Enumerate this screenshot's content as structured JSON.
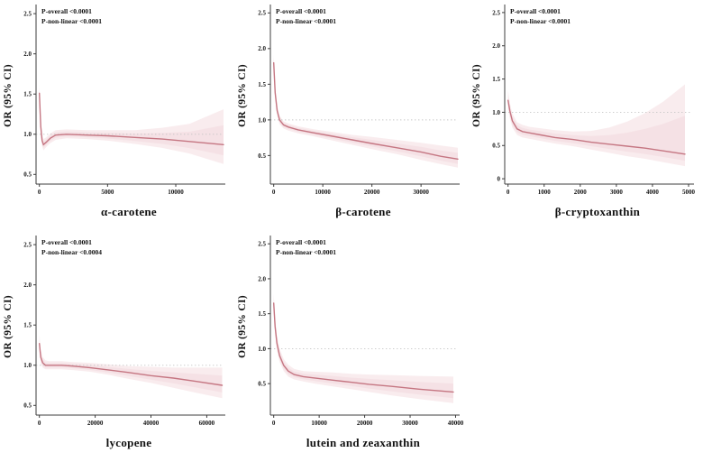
{
  "figure": {
    "background": "#ffffff",
    "curve_color": "#c57682",
    "band_color": "#f3d9de",
    "refline_color": "#c6c6c6",
    "axis_color": "#3c3c3c",
    "text_color": "#111111"
  },
  "chart_data": [
    {
      "type": "line",
      "id": "alpha-carotene",
      "title": "α-carotene",
      "ylabel": "OR (95% CI)",
      "p_overall": "P-overall <0.0001",
      "p_nonlinear": "P-non-linear <0.0001",
      "xlim": [
        0,
        13500
      ],
      "ylim": [
        0.38,
        2.58
      ],
      "xticks": [
        "0",
        "5000",
        "10000"
      ],
      "yticks": [
        "0.5",
        "1.0",
        "1.5",
        "2.0",
        "2.5"
      ],
      "refline": 1.0,
      "legend": "none",
      "grid": "off",
      "x": [
        0,
        100,
        200,
        300,
        500,
        800,
        1200,
        2000,
        3500,
        5000,
        7000,
        9000,
        11000,
        13500
      ],
      "or": [
        1.51,
        1.1,
        0.92,
        0.87,
        0.9,
        0.95,
        0.99,
        1.0,
        0.99,
        0.98,
        0.96,
        0.94,
        0.91,
        0.87
      ],
      "lower": [
        1.4,
        1.0,
        0.85,
        0.8,
        0.84,
        0.89,
        0.93,
        0.95,
        0.94,
        0.92,
        0.88,
        0.83,
        0.76,
        0.63
      ],
      "upper": [
        1.62,
        1.2,
        1.0,
        0.94,
        0.96,
        1.01,
        1.05,
        1.06,
        1.05,
        1.05,
        1.05,
        1.08,
        1.13,
        1.31
      ]
    },
    {
      "type": "line",
      "id": "beta-carotene",
      "title": "β-carotene",
      "ylabel": "OR (95% CI)",
      "p_overall": "P-overall <0.0001",
      "p_nonlinear": "P-non-linear <0.0001",
      "xlim": [
        0,
        37500
      ],
      "ylim": [
        0.1,
        2.58
      ],
      "xticks": [
        "0",
        "10000",
        "20000",
        "30000"
      ],
      "yticks": [
        "0.5",
        "1.0",
        "1.5",
        "2.0",
        "2.5"
      ],
      "refline": 1.0,
      "legend": "none",
      "grid": "off",
      "x": [
        0,
        300,
        700,
        1200,
        2000,
        3000,
        5000,
        8000,
        12000,
        16000,
        20000,
        25000,
        30000,
        34000,
        37500
      ],
      "or": [
        1.8,
        1.38,
        1.13,
        1.0,
        0.93,
        0.9,
        0.86,
        0.82,
        0.77,
        0.72,
        0.67,
        0.61,
        0.55,
        0.49,
        0.45
      ],
      "lower": [
        1.7,
        1.3,
        1.06,
        0.94,
        0.88,
        0.85,
        0.81,
        0.77,
        0.71,
        0.65,
        0.59,
        0.52,
        0.44,
        0.38,
        0.33
      ],
      "upper": [
        1.91,
        1.47,
        1.2,
        1.06,
        0.98,
        0.95,
        0.91,
        0.87,
        0.83,
        0.79,
        0.76,
        0.72,
        0.68,
        0.64,
        0.61
      ]
    },
    {
      "type": "line",
      "id": "beta-cryptoxanthin",
      "title": "β-cryptoxanthin",
      "ylabel": "OR (95% CI)",
      "p_overall": "P-overall <0.0001",
      "p_nonlinear": "P-non-linear <0.0001",
      "xlim": [
        0,
        5100
      ],
      "ylim": [
        -0.08,
        2.58
      ],
      "xticks": [
        "0",
        "1000",
        "2000",
        "3000",
        "4000",
        "5000"
      ],
      "yticks": [
        "0",
        "0.5",
        "1.0",
        "1.5",
        "2.0",
        "2.5"
      ],
      "refline": 1.0,
      "legend": "none",
      "grid": "off",
      "x": [
        0,
        50,
        120,
        250,
        400,
        600,
        900,
        1300,
        1800,
        2300,
        2800,
        3300,
        3800,
        4300,
        4900
      ],
      "or": [
        1.18,
        1.02,
        0.87,
        0.75,
        0.71,
        0.69,
        0.66,
        0.62,
        0.59,
        0.55,
        0.52,
        0.49,
        0.46,
        0.42,
        0.37
      ],
      "lower": [
        1.05,
        0.91,
        0.77,
        0.66,
        0.62,
        0.6,
        0.57,
        0.53,
        0.49,
        0.44,
        0.39,
        0.34,
        0.3,
        0.25,
        0.19
      ],
      "upper": [
        1.33,
        1.14,
        0.98,
        0.85,
        0.81,
        0.78,
        0.76,
        0.73,
        0.71,
        0.72,
        0.77,
        0.86,
        0.99,
        1.16,
        1.42
      ]
    },
    {
      "type": "line",
      "id": "lycopene",
      "title": "lycopene",
      "ylabel": "OR (95% CI)",
      "p_overall": "P-overall <0.0001",
      "p_nonlinear": "P-non-linear <0.0004",
      "xlim": [
        0,
        66000
      ],
      "ylim": [
        0.38,
        2.58
      ],
      "xticks": [
        "0",
        "20000",
        "40000",
        "60000"
      ],
      "yticks": [
        "0.5",
        "1.0",
        "1.5",
        "2.0",
        "2.5"
      ],
      "refline": 1.0,
      "legend": "none",
      "grid": "off",
      "x": [
        0,
        500,
        1200,
        2200,
        3500,
        5500,
        8000,
        12000,
        18000,
        25000,
        32000,
        40000,
        48000,
        56000,
        65500
      ],
      "or": [
        1.27,
        1.1,
        1.03,
        1.0,
        1.0,
        1.0,
        1.0,
        0.99,
        0.97,
        0.94,
        0.91,
        0.87,
        0.84,
        0.8,
        0.75
      ],
      "lower": [
        1.17,
        1.02,
        0.97,
        0.95,
        0.95,
        0.95,
        0.95,
        0.94,
        0.92,
        0.88,
        0.83,
        0.78,
        0.72,
        0.66,
        0.59
      ],
      "upper": [
        1.38,
        1.19,
        1.1,
        1.06,
        1.05,
        1.05,
        1.05,
        1.04,
        1.03,
        1.01,
        0.99,
        0.98,
        0.97,
        0.97,
        0.97
      ]
    },
    {
      "type": "line",
      "id": "lutein-and-zeaxanthin",
      "title": "lutein and zeaxanthin",
      "ylabel": "OR (95% CI)",
      "p_overall": "P-overall <0.0001",
      "p_nonlinear": "P-non-linear <0.0001",
      "xlim": [
        0,
        40500
      ],
      "ylim": [
        0.05,
        2.58
      ],
      "xticks": [
        "0",
        "10000",
        "20000",
        "30000",
        "40000"
      ],
      "yticks": [
        "0.5",
        "1.0",
        "1.5",
        "2.0",
        "2.5"
      ],
      "refline": 1.0,
      "legend": "none",
      "grid": "off",
      "x": [
        0,
        300,
        700,
        1300,
        2200,
        3200,
        4500,
        6500,
        9000,
        13000,
        17000,
        21000,
        26000,
        32000,
        39500
      ],
      "or": [
        1.65,
        1.32,
        1.08,
        0.9,
        0.76,
        0.68,
        0.63,
        0.6,
        0.58,
        0.55,
        0.52,
        0.49,
        0.46,
        0.42,
        0.38
      ],
      "lower": [
        1.52,
        1.21,
        0.98,
        0.81,
        0.68,
        0.6,
        0.56,
        0.53,
        0.5,
        0.46,
        0.42,
        0.38,
        0.33,
        0.28,
        0.22
      ],
      "upper": [
        1.79,
        1.44,
        1.19,
        1.0,
        0.85,
        0.77,
        0.71,
        0.68,
        0.67,
        0.66,
        0.64,
        0.63,
        0.62,
        0.61,
        0.6
      ]
    }
  ]
}
